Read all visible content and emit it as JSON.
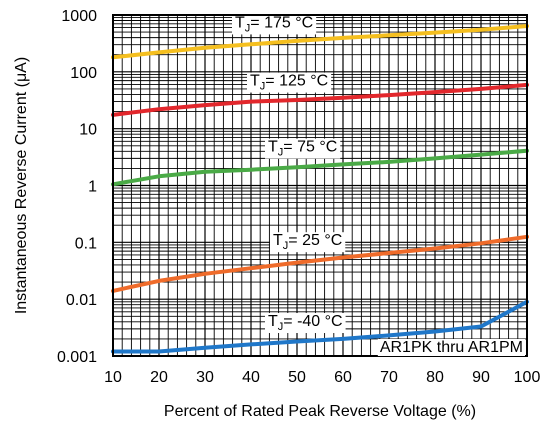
{
  "chart_data": {
    "type": "line",
    "xlabel": "Percent of Rated Peak Reverse Voltage (%)",
    "ylabel": "Instantaneous Reverse Current (μA)",
    "xlim": [
      10,
      100
    ],
    "ylim": [
      0.001,
      1000
    ],
    "y_scale": "log",
    "x_ticks": [
      "10",
      "20",
      "30",
      "40",
      "50",
      "60",
      "70",
      "80",
      "90",
      "100"
    ],
    "y_ticks": [
      "0.001",
      "0.01",
      "0.1",
      "1",
      "10",
      "100",
      "1000"
    ],
    "grid": true,
    "annotation": "AR1PK thru AR1PM",
    "x": [
      10,
      20,
      30,
      40,
      50,
      60,
      70,
      80,
      90,
      100
    ],
    "series": [
      {
        "name": "TJ = 175 °C",
        "label_main": "T",
        "label_sub": "J",
        "label_rest": "= 175 °C",
        "color": "#f5bf1f",
        "values": [
          180,
          220,
          265,
          305,
          350,
          395,
          440,
          490,
          550,
          640
        ]
      },
      {
        "name": "TJ = 125 °C",
        "label_main": "T",
        "label_sub": "J",
        "label_rest": "= 125 °C",
        "color": "#e2272c",
        "values": [
          17.5,
          22,
          26,
          30,
          32,
          35,
          39,
          44,
          50,
          59
        ]
      },
      {
        "name": "TJ = 75 °C",
        "label_main": "T",
        "label_sub": "J",
        "label_rest": "= 75 °C",
        "color": "#4aaa46",
        "values": [
          1.05,
          1.45,
          1.75,
          1.9,
          2.1,
          2.35,
          2.6,
          3.0,
          3.5,
          4.1
        ]
      },
      {
        "name": "TJ = 25 °C",
        "label_main": "T",
        "label_sub": "J",
        "label_rest": "= 25 °C",
        "color": "#ef6b2a",
        "values": [
          0.014,
          0.021,
          0.028,
          0.035,
          0.044,
          0.054,
          0.065,
          0.078,
          0.096,
          0.125
        ]
      },
      {
        "name": "TJ = -40 °C",
        "label_main": "T",
        "label_sub": "J",
        "label_rest": "= -40 °C",
        "color": "#1f77c9",
        "values": [
          0.0012,
          0.0012,
          0.0014,
          0.0016,
          0.0018,
          0.002,
          0.0023,
          0.0027,
          0.0033,
          0.009
        ]
      }
    ]
  }
}
